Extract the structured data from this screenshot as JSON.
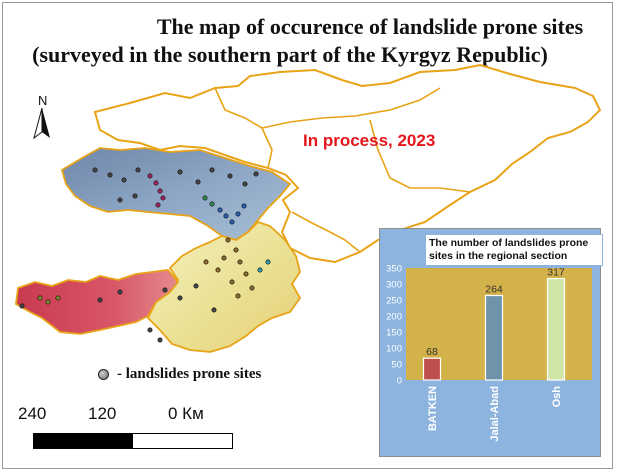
{
  "title_line1": "The map of occurence of landslide prone sites",
  "title_line2": "(surveyed in the southern part of the Kyrgyz Republic)",
  "status_text": "In process, 2023",
  "north_label": "N",
  "legend": {
    "symbol": "circle",
    "label": "- landslides prone sites"
  },
  "scale_bar": {
    "labels": [
      "240",
      "120",
      "0 Км"
    ]
  },
  "colors": {
    "border": "#e8a317",
    "osh_region": "#f2e8a3",
    "jalal_abad_region": "#7f98b8",
    "batken_region": "#d0485a",
    "status_text": "#e4161b",
    "chart_background": "#8cb4df",
    "plot_area": "#d4b24a"
  },
  "chart_data": {
    "type": "bar",
    "title": "The number of landslides prone sites in the regional section",
    "categories": [
      "BATKEN",
      "Jalal-Abad",
      "Osh"
    ],
    "values": [
      68,
      264,
      317
    ],
    "bar_colors": [
      "#c0504d",
      "#6f93ab",
      "#cfe5a8"
    ],
    "ylim": [
      0,
      350
    ],
    "yticks": [
      "0",
      "50",
      "100",
      "150",
      "200",
      "250",
      "300",
      "350"
    ],
    "data_labels": [
      "68",
      "264",
      "317"
    ],
    "grid": false,
    "legend": "none"
  }
}
